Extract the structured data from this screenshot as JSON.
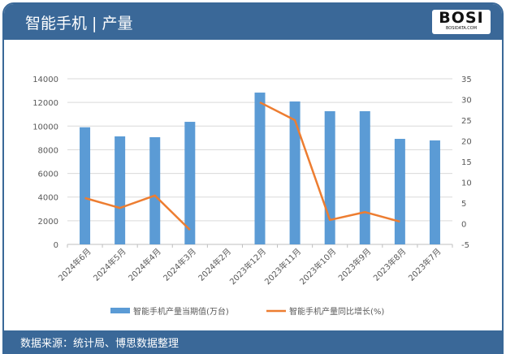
{
  "header": {
    "title": "智能手机 | 产量",
    "logo_text": "BOSI",
    "logo_sub": "BOSIDATA.COM"
  },
  "footer": {
    "source": "数据来源：统计局、博思数据整理"
  },
  "colors": {
    "bar": "#5b9bd5",
    "line": "#ed7d31",
    "header": "#3a6898"
  },
  "chart_data": {
    "type": "bar+line",
    "categories": [
      "2024年6月",
      "2024年5月",
      "2024年4月",
      "2024年3月",
      "2024年2月",
      "2023年12月",
      "2023年11月",
      "2023年10月",
      "2023年9月",
      "2023年8月",
      "2023年7月"
    ],
    "series": [
      {
        "name": "智能手机产量当期值(万台)",
        "type": "bar",
        "axis": "left",
        "values": [
          9900,
          9130,
          9060,
          10360,
          null,
          12830,
          12080,
          11260,
          11260,
          8920,
          8790
        ]
      },
      {
        "name": "智能手机产量同比增长(%)",
        "type": "line",
        "axis": "right",
        "values": [
          6.2,
          3.8,
          6.8,
          -1.5,
          null,
          29.3,
          25.0,
          0.9,
          2.8,
          0.5,
          null
        ]
      }
    ],
    "y_left": {
      "min": 0,
      "max": 14000,
      "ticks": [
        0,
        2000,
        4000,
        6000,
        8000,
        10000,
        12000,
        14000
      ]
    },
    "y_right": {
      "min": -5,
      "max": 35,
      "ticks": [
        -5,
        0,
        5,
        10,
        15,
        20,
        25,
        30,
        35
      ]
    },
    "grid": true,
    "legend": "bottom"
  }
}
